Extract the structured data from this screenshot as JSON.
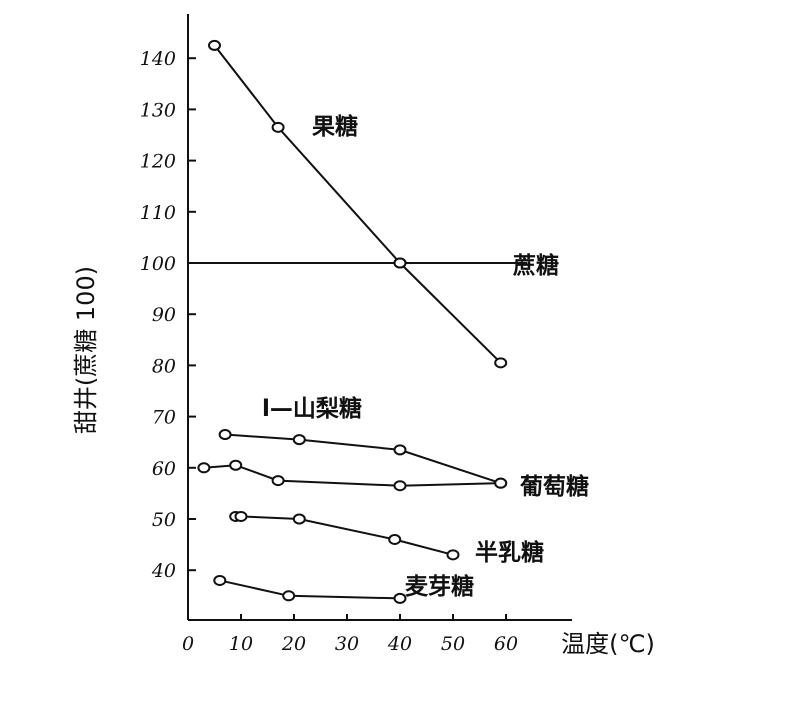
{
  "chart_data": {
    "type": "line",
    "xlabel": "温度(℃)",
    "ylabel": "甜井(蔗糖 100)",
    "xlim": [
      0,
      70
    ],
    "ylim": [
      34,
      146
    ],
    "x_ticks": [
      0,
      10,
      20,
      30,
      40,
      50,
      60
    ],
    "y_ticks": [
      40,
      50,
      60,
      70,
      80,
      90,
      100,
      110,
      120,
      130,
      140
    ],
    "grid": false,
    "legend": "none",
    "series": [
      {
        "name": "果糖",
        "points": [
          [
            5,
            142.5
          ],
          [
            17,
            126.5
          ],
          [
            40,
            100
          ],
          [
            59,
            80.5
          ]
        ]
      },
      {
        "name": "蔗糖",
        "points": [
          [
            0,
            100
          ],
          [
            40,
            100
          ],
          [
            64,
            100
          ]
        ]
      },
      {
        "name": "l—山梨糖",
        "points": [
          [
            7,
            66.5
          ],
          [
            21,
            65.5
          ],
          [
            40,
            63.5
          ],
          [
            59,
            57
          ]
        ]
      },
      {
        "name": "葡萄糖",
        "points": [
          [
            3,
            60
          ],
          [
            9,
            60.5
          ],
          [
            17,
            57.5
          ],
          [
            40,
            56.5
          ],
          [
            59,
            57
          ]
        ]
      },
      {
        "name": "半乳糖",
        "points": [
          [
            9,
            50.5
          ],
          [
            10,
            50.5
          ],
          [
            21,
            50
          ],
          [
            39,
            46
          ],
          [
            50,
            43
          ]
        ]
      },
      {
        "name": "麦芽糖",
        "points": [
          [
            6,
            38
          ],
          [
            19,
            35
          ],
          [
            40,
            34.5
          ]
        ]
      }
    ]
  }
}
